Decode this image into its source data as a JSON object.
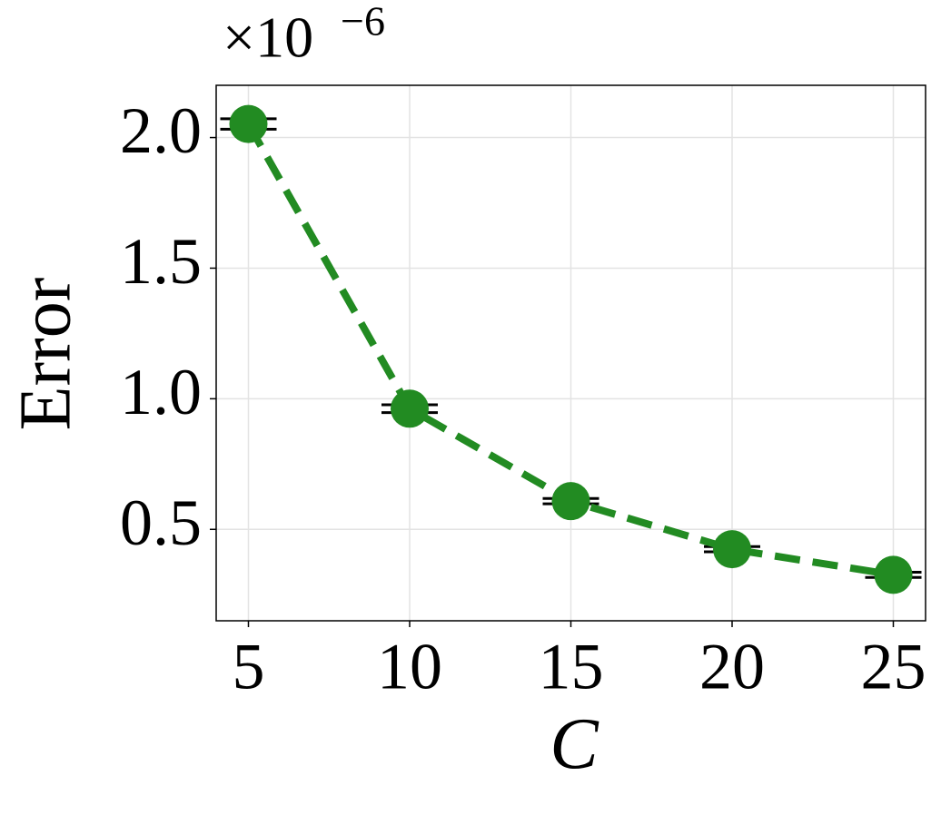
{
  "chart_data": {
    "type": "line",
    "x_label": "C",
    "y_label": "Error",
    "y_scale_base": "×10",
    "y_scale_exponent": "−6",
    "x": [
      5,
      10,
      15,
      20,
      25
    ],
    "series": [
      {
        "color": "#228b22",
        "values": [
          2.052,
          0.962,
          0.608,
          0.424,
          0.326
        ],
        "errors": [
          0.02,
          0.015,
          0.01,
          0.01,
          0.01
        ]
      }
    ],
    "xlim": [
      4,
      26
    ],
    "ylim": [
      0.15,
      2.2
    ],
    "xticks": [
      5,
      10,
      15,
      20,
      25
    ],
    "yticks": [
      0.5,
      {
        "value": 1,
        "label": "1.0"
      },
      1.5,
      {
        "value": 2,
        "label": "2.0"
      }
    ],
    "grid": true
  }
}
